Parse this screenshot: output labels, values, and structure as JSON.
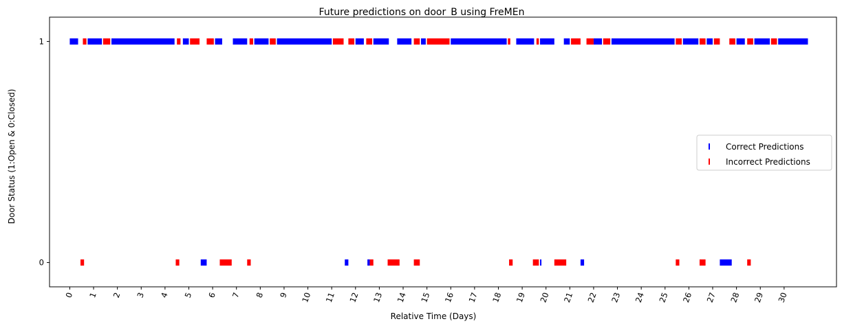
{
  "chart_data": {
    "type": "scatter",
    "title": "Future predictions on door_B using FreMEn",
    "xlabel": "Relative Time (Days)",
    "ylabel": "Door Status (1:Open & 0:Closed)",
    "xlim": [
      -0.85,
      32.2
    ],
    "ylim": [
      -0.11,
      1.11
    ],
    "xticks": [
      0,
      1,
      2,
      3,
      4,
      5,
      6,
      7,
      8,
      9,
      10,
      11,
      12,
      13,
      14,
      15,
      16,
      17,
      18,
      19,
      20,
      21,
      22,
      23,
      24,
      25,
      26,
      27,
      28,
      29,
      30
    ],
    "yticks": [
      0,
      1
    ],
    "grid": false,
    "legend_position": "center-right",
    "series": [
      {
        "name": "Correct Predictions",
        "color": "#0000ff",
        "marker": "|",
        "segments": [
          {
            "y": 1,
            "x": [
              0.0,
              0.35
            ]
          },
          {
            "y": 1,
            "x": [
              0.75,
              1.35
            ]
          },
          {
            "y": 1,
            "x": [
              1.75,
              4.4
            ]
          },
          {
            "y": 1,
            "x": [
              4.75,
              5.0
            ]
          },
          {
            "y": 1,
            "x": [
              6.1,
              6.4
            ]
          },
          {
            "y": 1,
            "x": [
              6.85,
              7.45
            ]
          },
          {
            "y": 1,
            "x": [
              7.75,
              8.35
            ]
          },
          {
            "y": 1,
            "x": [
              8.7,
              11.0
            ]
          },
          {
            "y": 1,
            "x": [
              12.0,
              12.35
            ]
          },
          {
            "y": 1,
            "x": [
              12.75,
              13.4
            ]
          },
          {
            "y": 1,
            "x": [
              13.75,
              14.35
            ]
          },
          {
            "y": 1,
            "x": [
              14.75,
              14.95
            ]
          },
          {
            "y": 1,
            "x": [
              16.0,
              18.35
            ]
          },
          {
            "y": 1,
            "x": [
              18.75,
              19.5
            ]
          },
          {
            "y": 1,
            "x": [
              19.75,
              20.35
            ]
          },
          {
            "y": 1,
            "x": [
              20.75,
              21.0
            ]
          },
          {
            "y": 1,
            "x": [
              22.0,
              22.35
            ]
          },
          {
            "y": 1,
            "x": [
              22.75,
              25.4
            ]
          },
          {
            "y": 1,
            "x": [
              25.75,
              26.4
            ]
          },
          {
            "y": 1,
            "x": [
              26.75,
              27.0
            ]
          },
          {
            "y": 1,
            "x": [
              28.0,
              28.35
            ]
          },
          {
            "y": 1,
            "x": [
              28.75,
              29.4
            ]
          },
          {
            "y": 1,
            "x": [
              29.75,
              31.0
            ]
          },
          {
            "y": 0,
            "x": [
              5.5,
              5.75
            ]
          },
          {
            "y": 0,
            "x": [
              11.55,
              11.7
            ]
          },
          {
            "y": 0,
            "x": [
              12.5,
              12.6
            ]
          },
          {
            "y": 0,
            "x": [
              19.75,
              19.8
            ]
          },
          {
            "y": 0,
            "x": [
              21.45,
              21.6
            ]
          },
          {
            "y": 0,
            "x": [
              27.3,
              27.8
            ]
          }
        ]
      },
      {
        "name": "Incorrect Predictions",
        "color": "#ff0000",
        "marker": "|",
        "segments": [
          {
            "y": 1,
            "x": [
              0.55,
              0.7
            ]
          },
          {
            "y": 1,
            "x": [
              1.4,
              1.7
            ]
          },
          {
            "y": 1,
            "x": [
              4.5,
              4.65
            ]
          },
          {
            "y": 1,
            "x": [
              5.05,
              5.45
            ]
          },
          {
            "y": 1,
            "x": [
              5.75,
              6.05
            ]
          },
          {
            "y": 1,
            "x": [
              7.55,
              7.7
            ]
          },
          {
            "y": 1,
            "x": [
              8.4,
              8.65
            ]
          },
          {
            "y": 1,
            "x": [
              11.05,
              11.5
            ]
          },
          {
            "y": 1,
            "x": [
              11.7,
              11.95
            ]
          },
          {
            "y": 1,
            "x": [
              12.45,
              12.7
            ]
          },
          {
            "y": 1,
            "x": [
              14.45,
              14.7
            ]
          },
          {
            "y": 1,
            "x": [
              15.0,
              15.95
            ]
          },
          {
            "y": 1,
            "x": [
              18.4,
              18.5
            ]
          },
          {
            "y": 1,
            "x": [
              19.6,
              19.7
            ]
          },
          {
            "y": 1,
            "x": [
              21.05,
              21.45
            ]
          },
          {
            "y": 1,
            "x": [
              21.7,
              22.0
            ]
          },
          {
            "y": 1,
            "x": [
              22.4,
              22.7
            ]
          },
          {
            "y": 1,
            "x": [
              25.45,
              25.7
            ]
          },
          {
            "y": 1,
            "x": [
              26.45,
              26.7
            ]
          },
          {
            "y": 1,
            "x": [
              27.05,
              27.3
            ]
          },
          {
            "y": 1,
            "x": [
              27.7,
              27.95
            ]
          },
          {
            "y": 1,
            "x": [
              28.45,
              28.7
            ]
          },
          {
            "y": 1,
            "x": [
              29.45,
              29.7
            ]
          },
          {
            "y": 0,
            "x": [
              0.45,
              0.6
            ]
          },
          {
            "y": 0,
            "x": [
              4.45,
              4.6
            ]
          },
          {
            "y": 0,
            "x": [
              6.3,
              6.8
            ]
          },
          {
            "y": 0,
            "x": [
              7.45,
              7.6
            ]
          },
          {
            "y": 0,
            "x": [
              12.6,
              12.75
            ]
          },
          {
            "y": 0,
            "x": [
              13.35,
              13.85
            ]
          },
          {
            "y": 0,
            "x": [
              14.45,
              14.7
            ]
          },
          {
            "y": 0,
            "x": [
              18.45,
              18.6
            ]
          },
          {
            "y": 0,
            "x": [
              19.45,
              19.7
            ]
          },
          {
            "y": 0,
            "x": [
              20.35,
              20.85
            ]
          },
          {
            "y": 0,
            "x": [
              25.45,
              25.6
            ]
          },
          {
            "y": 0,
            "x": [
              26.45,
              26.7
            ]
          },
          {
            "y": 0,
            "x": [
              28.45,
              28.6
            ]
          }
        ]
      }
    ]
  }
}
